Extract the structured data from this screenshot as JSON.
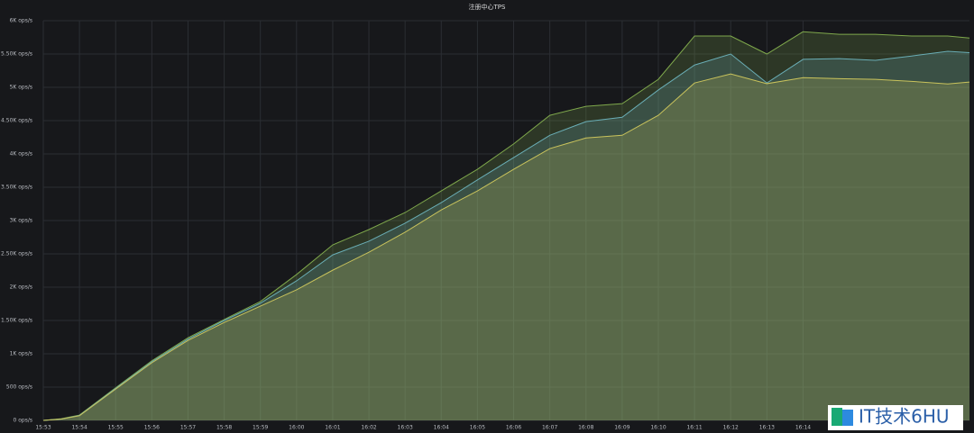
{
  "chart_data": {
    "type": "area",
    "title": "注册中心TPS",
    "x": [
      953,
      953.5,
      954,
      955,
      956,
      957,
      958,
      959,
      960,
      961,
      962,
      963,
      964,
      965,
      966,
      967,
      968,
      969,
      970,
      971,
      972,
      973,
      974,
      975,
      976,
      977,
      978,
      978.6
    ],
    "series": [
      {
        "color": "#7fa84c",
        "values": [
          0,
          25,
          80,
          490,
          895,
          1240,
          1515,
          1785,
          2190,
          2635,
          2865,
          3120,
          3445,
          3770,
          4150,
          4580,
          4715,
          4755,
          5120,
          5770,
          5770,
          5500,
          5835,
          5795,
          5795,
          5770,
          5770,
          5740
        ]
      },
      {
        "color": "#6aaeb6",
        "values": [
          0,
          20,
          75,
          480,
          880,
          1220,
          1500,
          1760,
          2095,
          2485,
          2690,
          2960,
          3270,
          3610,
          3945,
          4280,
          4485,
          4550,
          4960,
          5335,
          5500,
          5065,
          5420,
          5430,
          5405,
          5470,
          5540,
          5520
        ]
      },
      {
        "color": "#c9c35c",
        "values": [
          0,
          20,
          70,
          470,
          865,
          1200,
          1470,
          1715,
          1960,
          2255,
          2525,
          2825,
          3160,
          3445,
          3770,
          4080,
          4240,
          4280,
          4580,
          5065,
          5200,
          5055,
          5145,
          5130,
          5120,
          5090,
          5050,
          5080
        ]
      }
    ],
    "xlim": [
      953,
      978.6
    ],
    "xticks": [
      {
        "value": 953,
        "label": "15:53"
      },
      {
        "value": 954,
        "label": "15:54"
      },
      {
        "value": 955,
        "label": "15:55"
      },
      {
        "value": 956,
        "label": "15:56"
      },
      {
        "value": 957,
        "label": "15:57"
      },
      {
        "value": 958,
        "label": "15:58"
      },
      {
        "value": 959,
        "label": "15:59"
      },
      {
        "value": 960,
        "label": "16:00"
      },
      {
        "value": 961,
        "label": "16:01"
      },
      {
        "value": 962,
        "label": "16:02"
      },
      {
        "value": 963,
        "label": "16:03"
      },
      {
        "value": 964,
        "label": "16:04"
      },
      {
        "value": 965,
        "label": "16:05"
      },
      {
        "value": 966,
        "label": "16:06"
      },
      {
        "value": 967,
        "label": "16:07"
      },
      {
        "value": 968,
        "label": "16:08"
      },
      {
        "value": 969,
        "label": "16:09"
      },
      {
        "value": 970,
        "label": "16:10"
      },
      {
        "value": 971,
        "label": "16:11"
      },
      {
        "value": 972,
        "label": "16:12"
      },
      {
        "value": 973,
        "label": "16:13"
      },
      {
        "value": 974,
        "label": "16:14"
      }
    ],
    "ylim": [
      0,
      6000
    ],
    "yticks": [
      {
        "value": 0,
        "label": "0 ops/s"
      },
      {
        "value": 500,
        "label": "500 ops/s"
      },
      {
        "value": 1000,
        "label": "1K ops/s"
      },
      {
        "value": 1500,
        "label": "1.50K ops/s"
      },
      {
        "value": 2000,
        "label": "2K ops/s"
      },
      {
        "value": 2500,
        "label": "2.50K ops/s"
      },
      {
        "value": 3000,
        "label": "3K ops/s"
      },
      {
        "value": 3500,
        "label": "3.50K ops/s"
      },
      {
        "value": 4000,
        "label": "4K ops/s"
      },
      {
        "value": 4500,
        "label": "4.50K ops/s"
      },
      {
        "value": 5000,
        "label": "5K ops/s"
      },
      {
        "value": 5500,
        "label": "5.50K ops/s"
      },
      {
        "value": 6000,
        "label": "6K ops/s"
      }
    ],
    "grid": true,
    "watermark": "IT技术6HU"
  }
}
